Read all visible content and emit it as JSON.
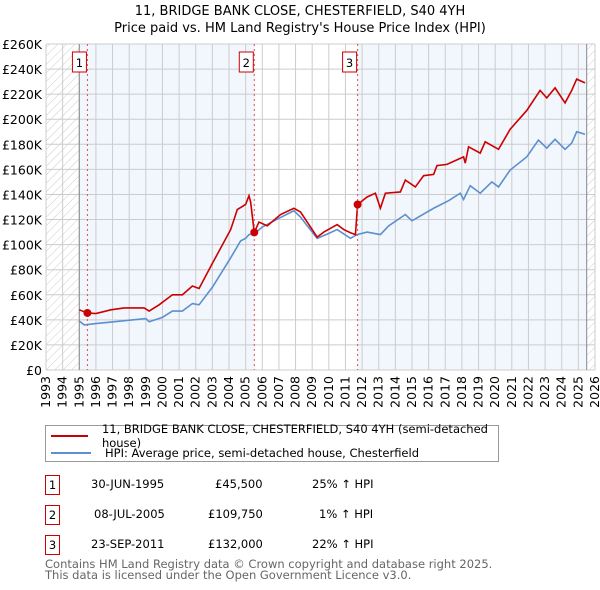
{
  "chart_data": {
    "type": "line",
    "title": "11, BRIDGE BANK CLOSE, CHESTERFIELD, S40 4YH",
    "subtitle": "Price paid vs. HM Land Registry's House Price Index (HPI)",
    "xlim": [
      1993,
      2026
    ],
    "ylim": [
      0,
      260000
    ],
    "x_ticks": [
      "1993",
      "1994",
      "1995",
      "1996",
      "1997",
      "1998",
      "1999",
      "2000",
      "2001",
      "2002",
      "2003",
      "2004",
      "2005",
      "2006",
      "2007",
      "2008",
      "2009",
      "2010",
      "2011",
      "2012",
      "2013",
      "2014",
      "2015",
      "2016",
      "2017",
      "2018",
      "2019",
      "2020",
      "2021",
      "2022",
      "2023",
      "2024",
      "2025",
      "2026"
    ],
    "y_ticks": [
      "£0",
      "£20K",
      "£40K",
      "£60K",
      "£80K",
      "£100K",
      "£120K",
      "£140K",
      "£160K",
      "£180K",
      "£200K",
      "£220K",
      "£240K",
      "£260K"
    ],
    "grid": true,
    "data_range": [
      1995.0,
      2025.5
    ],
    "series": [
      {
        "name": "11, BRIDGE BANK CLOSE, CHESTERFIELD, S40 4YH (semi-detached house)",
        "color": "#cc0000",
        "x": [
          1995.0,
          1995.49,
          1996.0,
          1996.9,
          1997.7,
          1998.9,
          1999.2,
          1999.8,
          2000.6,
          2001.2,
          2001.8,
          2002.2,
          2003.0,
          2004.1,
          2004.5,
          2005.0,
          2005.2,
          2005.3,
          2005.52,
          2005.8,
          2006.3,
          2007.1,
          2007.9,
          2008.3,
          2008.7,
          2009.3,
          2009.7,
          2010.5,
          2010.9,
          2011.3,
          2011.6,
          2011.73,
          2012.3,
          2012.8,
          2013.1,
          2013.4,
          2014.3,
          2014.6,
          2015.2,
          2015.7,
          2016.3,
          2016.5,
          2017.1,
          2018.1,
          2018.2,
          2018.4,
          2019.1,
          2019.4,
          2020.2,
          2020.9,
          2021.9,
          2022.7,
          2023.1,
          2023.6,
          2024.2,
          2024.6,
          2024.9,
          2025.4
        ],
        "y": [
          48000,
          45500,
          45000,
          48000,
          49500,
          49500,
          47000,
          52000,
          60000,
          60000,
          67000,
          65000,
          85000,
          112000,
          128000,
          132000,
          139000,
          134000,
          109750,
          118000,
          115000,
          124000,
          129000,
          126000,
          118000,
          106000,
          110000,
          116000,
          112000,
          109500,
          108000,
          132000,
          138000,
          141000,
          129000,
          141000,
          142000,
          151500,
          146000,
          155000,
          156000,
          163000,
          164000,
          170000,
          165000,
          178000,
          173000,
          182000,
          176000,
          192000,
          207000,
          223000,
          217000,
          225000,
          213000,
          223000,
          232000,
          229000
        ]
      },
      {
        "name": "HPI: Average price, semi-detached house, Chesterfield",
        "color": "#5b8fd0",
        "x": [
          1995.0,
          1995.3,
          1996.0,
          1997.5,
          1999.0,
          1999.2,
          2000.0,
          2000.6,
          2001.2,
          2001.8,
          2002.2,
          2003.0,
          2004.1,
          2004.7,
          2005.0,
          2005.2,
          2005.5,
          2006.0,
          2007.0,
          2007.9,
          2008.3,
          2008.7,
          2009.3,
          2010.0,
          2010.5,
          2011.3,
          2011.7,
          2012.3,
          2013.1,
          2013.6,
          2014.6,
          2015.0,
          2016.3,
          2017.2,
          2017.9,
          2018.1,
          2018.5,
          2019.1,
          2019.8,
          2020.2,
          2020.9,
          2021.9,
          2022.6,
          2023.1,
          2023.6,
          2024.2,
          2024.6,
          2024.9,
          2025.4
        ],
        "y": [
          39000,
          36000,
          37000,
          39000,
          41000,
          38500,
          42000,
          47000,
          47000,
          53000,
          52000,
          66000,
          89500,
          103000,
          105000,
          108000,
          108500,
          114000,
          121000,
          127000,
          122000,
          115000,
          105000,
          109000,
          112000,
          105000,
          108000,
          110000,
          108000,
          115000,
          124000,
          119000,
          129000,
          135000,
          141000,
          136000,
          147000,
          141000,
          150000,
          146000,
          159500,
          170000,
          183400,
          177000,
          184000,
          176000,
          181000,
          190000,
          188000
        ]
      }
    ],
    "sales": [
      {
        "label": "1",
        "x": 1995.49,
        "y": 45500,
        "date": "30-JUN-1995",
        "price": "£45,500",
        "hpi": "25% ↑ HPI"
      },
      {
        "label": "2",
        "x": 2005.52,
        "y": 109750,
        "date": "08-JUL-2005",
        "price": "£109,750",
        "hpi": "1% ↑ HPI"
      },
      {
        "label": "3",
        "x": 2011.73,
        "y": 132000,
        "date": "23-SEP-2011",
        "price": "£132,000",
        "hpi": "22% ↑ HPI"
      }
    ],
    "legend": "below"
  },
  "footer": {
    "line1": "Contains HM Land Registry data © Crown copyright and database right 2025.",
    "line2": "This data is licensed under the Open Government Licence v3.0."
  }
}
